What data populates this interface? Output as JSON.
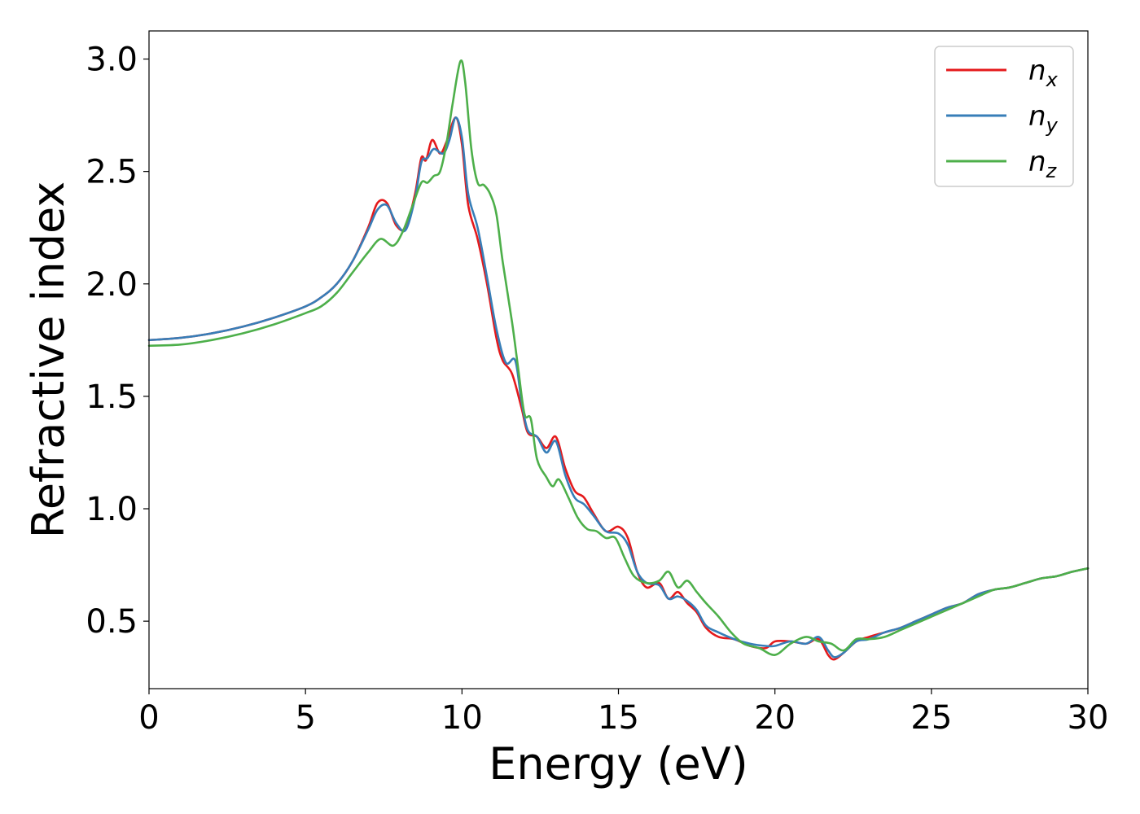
{
  "chart_data": {
    "type": "line",
    "title": "",
    "xlabel": "Energy (eV)",
    "ylabel": "Refractive index",
    "xlim": [
      0,
      30
    ],
    "ylim": [
      0.2,
      3.125
    ],
    "x_ticks": [
      "0",
      "5",
      "10",
      "15",
      "20",
      "25",
      "30"
    ],
    "y_ticks": [
      "0.5",
      "1.0",
      "1.5",
      "2.0",
      "2.5",
      "3.0"
    ],
    "x_tick_values": [
      0,
      5,
      10,
      15,
      20,
      25,
      30
    ],
    "y_tick_values": [
      0.5,
      1.0,
      1.5,
      2.0,
      2.5,
      3.0
    ],
    "grid": false,
    "legend_position": "top-right",
    "series": [
      {
        "name": "n_x",
        "label_base": "n",
        "label_sub": "x",
        "color": "#e41a1c",
        "points": [
          [
            0,
            1.75
          ],
          [
            1,
            1.76
          ],
          [
            2,
            1.78
          ],
          [
            3,
            1.81
          ],
          [
            4,
            1.85
          ],
          [
            5,
            1.9
          ],
          [
            5.5,
            1.94
          ],
          [
            6,
            2.0
          ],
          [
            6.5,
            2.1
          ],
          [
            7,
            2.25
          ],
          [
            7.3,
            2.36
          ],
          [
            7.6,
            2.36
          ],
          [
            7.9,
            2.26
          ],
          [
            8.2,
            2.25
          ],
          [
            8.5,
            2.4
          ],
          [
            8.7,
            2.56
          ],
          [
            8.85,
            2.55
          ],
          [
            9.05,
            2.64
          ],
          [
            9.3,
            2.58
          ],
          [
            9.5,
            2.63
          ],
          [
            9.8,
            2.74
          ],
          [
            10.0,
            2.62
          ],
          [
            10.2,
            2.35
          ],
          [
            10.5,
            2.2
          ],
          [
            10.8,
            2.0
          ],
          [
            11.1,
            1.76
          ],
          [
            11.3,
            1.66
          ],
          [
            11.6,
            1.6
          ],
          [
            11.9,
            1.45
          ],
          [
            12.1,
            1.34
          ],
          [
            12.4,
            1.32
          ],
          [
            12.7,
            1.27
          ],
          [
            13.0,
            1.32
          ],
          [
            13.3,
            1.18
          ],
          [
            13.6,
            1.08
          ],
          [
            13.9,
            1.05
          ],
          [
            14.2,
            0.98
          ],
          [
            14.6,
            0.9
          ],
          [
            15.0,
            0.92
          ],
          [
            15.3,
            0.87
          ],
          [
            15.6,
            0.72
          ],
          [
            15.9,
            0.65
          ],
          [
            16.3,
            0.67
          ],
          [
            16.6,
            0.6
          ],
          [
            16.9,
            0.63
          ],
          [
            17.2,
            0.58
          ],
          [
            17.5,
            0.54
          ],
          [
            17.8,
            0.47
          ],
          [
            18.2,
            0.43
          ],
          [
            18.7,
            0.42
          ],
          [
            19.2,
            0.39
          ],
          [
            19.7,
            0.38
          ],
          [
            20.0,
            0.41
          ],
          [
            20.5,
            0.41
          ],
          [
            21.0,
            0.4
          ],
          [
            21.4,
            0.42
          ],
          [
            21.7,
            0.35
          ],
          [
            21.9,
            0.33
          ],
          [
            22.2,
            0.36
          ],
          [
            22.6,
            0.41
          ],
          [
            23.0,
            0.43
          ],
          [
            23.5,
            0.45
          ],
          [
            24.0,
            0.47
          ],
          [
            24.5,
            0.5
          ],
          [
            25.0,
            0.53
          ],
          [
            25.5,
            0.56
          ],
          [
            26.0,
            0.58
          ],
          [
            26.5,
            0.62
          ],
          [
            27.0,
            0.64
          ],
          [
            27.5,
            0.65
          ],
          [
            28.0,
            0.67
          ],
          [
            28.5,
            0.69
          ],
          [
            29.0,
            0.7
          ],
          [
            29.5,
            0.72
          ],
          [
            30.0,
            0.735
          ]
        ]
      },
      {
        "name": "n_y",
        "label_base": "n",
        "label_sub": "y",
        "color": "#377eb8",
        "points": [
          [
            0,
            1.75
          ],
          [
            1,
            1.76
          ],
          [
            2,
            1.78
          ],
          [
            3,
            1.81
          ],
          [
            4,
            1.85
          ],
          [
            5,
            1.9
          ],
          [
            5.5,
            1.94
          ],
          [
            6,
            2.0
          ],
          [
            6.5,
            2.1
          ],
          [
            7,
            2.24
          ],
          [
            7.3,
            2.33
          ],
          [
            7.6,
            2.35
          ],
          [
            7.9,
            2.27
          ],
          [
            8.2,
            2.24
          ],
          [
            8.5,
            2.38
          ],
          [
            8.7,
            2.54
          ],
          [
            8.9,
            2.56
          ],
          [
            9.1,
            2.6
          ],
          [
            9.4,
            2.58
          ],
          [
            9.6,
            2.64
          ],
          [
            9.8,
            2.74
          ],
          [
            10.0,
            2.65
          ],
          [
            10.2,
            2.4
          ],
          [
            10.5,
            2.25
          ],
          [
            10.8,
            2.03
          ],
          [
            11.1,
            1.8
          ],
          [
            11.4,
            1.65
          ],
          [
            11.7,
            1.66
          ],
          [
            11.9,
            1.48
          ],
          [
            12.1,
            1.35
          ],
          [
            12.4,
            1.32
          ],
          [
            12.7,
            1.25
          ],
          [
            13.0,
            1.3
          ],
          [
            13.3,
            1.15
          ],
          [
            13.6,
            1.05
          ],
          [
            13.9,
            1.02
          ],
          [
            14.2,
            0.97
          ],
          [
            14.6,
            0.9
          ],
          [
            15.0,
            0.89
          ],
          [
            15.3,
            0.84
          ],
          [
            15.6,
            0.72
          ],
          [
            15.9,
            0.67
          ],
          [
            16.3,
            0.66
          ],
          [
            16.6,
            0.6
          ],
          [
            16.9,
            0.61
          ],
          [
            17.2,
            0.59
          ],
          [
            17.5,
            0.55
          ],
          [
            17.8,
            0.48
          ],
          [
            18.2,
            0.45
          ],
          [
            18.7,
            0.42
          ],
          [
            19.2,
            0.4
          ],
          [
            19.7,
            0.39
          ],
          [
            20.0,
            0.39
          ],
          [
            20.5,
            0.41
          ],
          [
            21.0,
            0.4
          ],
          [
            21.4,
            0.43
          ],
          [
            21.7,
            0.37
          ],
          [
            21.9,
            0.34
          ],
          [
            22.2,
            0.36
          ],
          [
            22.6,
            0.41
          ],
          [
            23.0,
            0.42
          ],
          [
            23.5,
            0.45
          ],
          [
            24.0,
            0.47
          ],
          [
            24.5,
            0.5
          ],
          [
            25.0,
            0.53
          ],
          [
            25.5,
            0.56
          ],
          [
            26.0,
            0.58
          ],
          [
            26.5,
            0.62
          ],
          [
            27.0,
            0.64
          ],
          [
            27.5,
            0.65
          ],
          [
            28.0,
            0.67
          ],
          [
            28.5,
            0.69
          ],
          [
            29.0,
            0.7
          ],
          [
            29.5,
            0.72
          ],
          [
            30.0,
            0.735
          ]
        ]
      },
      {
        "name": "n_z",
        "label_base": "n",
        "label_sub": "z",
        "color": "#4daf4a",
        "points": [
          [
            0,
            1.725
          ],
          [
            1,
            1.73
          ],
          [
            2,
            1.75
          ],
          [
            3,
            1.78
          ],
          [
            4,
            1.82
          ],
          [
            5,
            1.87
          ],
          [
            5.5,
            1.9
          ],
          [
            6,
            1.96
          ],
          [
            6.5,
            2.05
          ],
          [
            7,
            2.14
          ],
          [
            7.4,
            2.2
          ],
          [
            7.8,
            2.17
          ],
          [
            8.1,
            2.23
          ],
          [
            8.4,
            2.34
          ],
          [
            8.7,
            2.45
          ],
          [
            8.9,
            2.45
          ],
          [
            9.1,
            2.48
          ],
          [
            9.3,
            2.5
          ],
          [
            9.5,
            2.62
          ],
          [
            9.7,
            2.8
          ],
          [
            9.95,
            2.99
          ],
          [
            10.1,
            2.9
          ],
          [
            10.3,
            2.6
          ],
          [
            10.5,
            2.45
          ],
          [
            10.7,
            2.44
          ],
          [
            10.9,
            2.4
          ],
          [
            11.1,
            2.31
          ],
          [
            11.3,
            2.1
          ],
          [
            11.6,
            1.83
          ],
          [
            11.8,
            1.62
          ],
          [
            12.0,
            1.42
          ],
          [
            12.2,
            1.4
          ],
          [
            12.4,
            1.22
          ],
          [
            12.7,
            1.14
          ],
          [
            12.9,
            1.1
          ],
          [
            13.1,
            1.13
          ],
          [
            13.4,
            1.05
          ],
          [
            13.7,
            0.96
          ],
          [
            14.0,
            0.91
          ],
          [
            14.3,
            0.9
          ],
          [
            14.6,
            0.87
          ],
          [
            14.9,
            0.87
          ],
          [
            15.2,
            0.78
          ],
          [
            15.5,
            0.7
          ],
          [
            15.9,
            0.67
          ],
          [
            16.3,
            0.68
          ],
          [
            16.6,
            0.72
          ],
          [
            16.9,
            0.65
          ],
          [
            17.2,
            0.68
          ],
          [
            17.5,
            0.63
          ],
          [
            17.8,
            0.58
          ],
          [
            18.2,
            0.52
          ],
          [
            18.6,
            0.45
          ],
          [
            19.0,
            0.4
          ],
          [
            19.5,
            0.38
          ],
          [
            20.0,
            0.35
          ],
          [
            20.5,
            0.4
          ],
          [
            21.0,
            0.43
          ],
          [
            21.4,
            0.41
          ],
          [
            21.8,
            0.4
          ],
          [
            22.2,
            0.37
          ],
          [
            22.6,
            0.42
          ],
          [
            23.0,
            0.42
          ],
          [
            23.5,
            0.43
          ],
          [
            24.0,
            0.46
          ],
          [
            24.5,
            0.49
          ],
          [
            25.0,
            0.52
          ],
          [
            25.5,
            0.55
          ],
          [
            26.0,
            0.58
          ],
          [
            26.5,
            0.61
          ],
          [
            27.0,
            0.64
          ],
          [
            27.5,
            0.65
          ],
          [
            28.0,
            0.67
          ],
          [
            28.5,
            0.69
          ],
          [
            29.0,
            0.7
          ],
          [
            29.5,
            0.72
          ],
          [
            30.0,
            0.735
          ]
        ]
      }
    ]
  }
}
